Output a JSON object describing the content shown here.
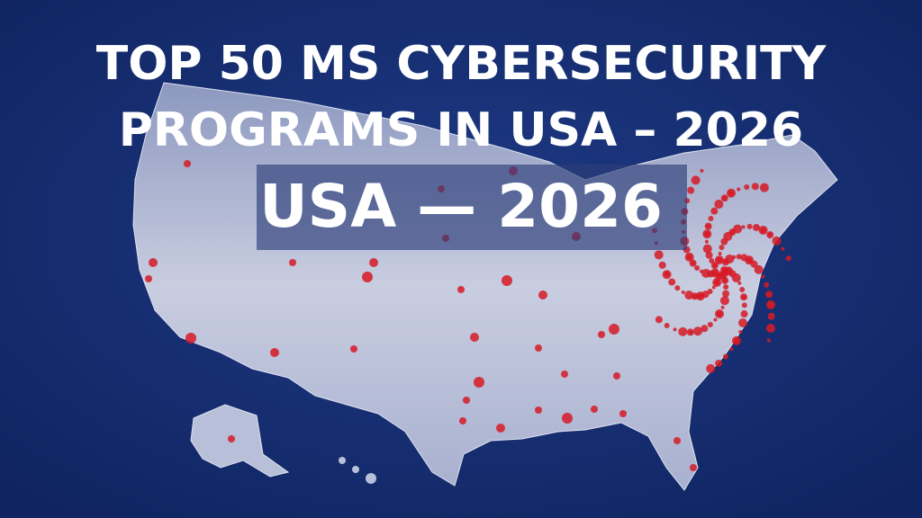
{
  "header": {
    "title_lines": [
      "TOP 50 MS CYBERSECURITY",
      "PROGRAMS IN USA – 2026"
    ],
    "banner": "USA — 2026"
  }
}
